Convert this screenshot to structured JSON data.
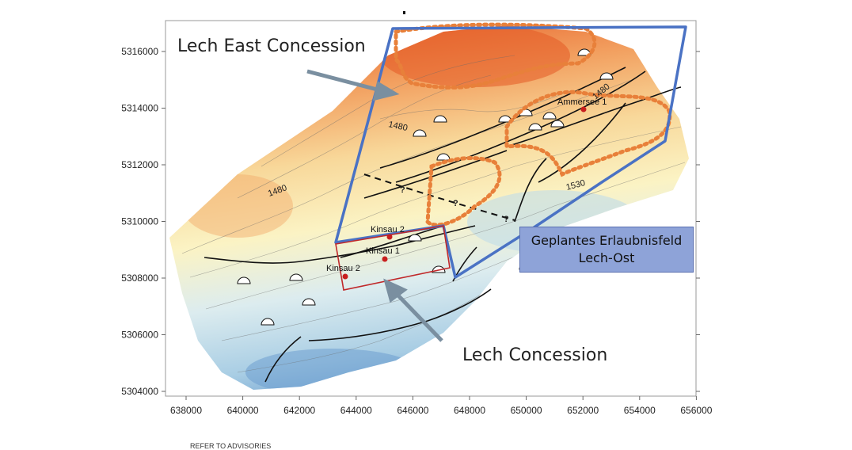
{
  "map": {
    "x_ticks": [
      "638000",
      "640000",
      "642000",
      "644000",
      "646000",
      "648000",
      "650000",
      "652000",
      "654000",
      "656000"
    ],
    "y_ticks": [
      "5316000",
      "5314000",
      "5312000",
      "5310000",
      "5308000",
      "5306000",
      "5304000"
    ],
    "contour_labels": [
      "1480",
      "1480",
      "1480",
      "1530"
    ],
    "fault_uncertain_marks": [
      "?",
      "?",
      "?"
    ],
    "wells": [
      "Kinsau 2",
      "Kinsau 1",
      "Kinsau 2",
      "Ammersee 1"
    ]
  },
  "callouts": {
    "lech_east": "Lech East Concession",
    "lech": "Lech Concession",
    "erlaubnis_line1": "Geplantes Erlaubnisfeld",
    "erlaubnis_line2": "Lech-Ost"
  },
  "footer": {
    "text": "REFER TO ADVISORIES"
  },
  "colors": {
    "concession_outline": "#4a72c4",
    "lech_concession_outline": "#c0282a",
    "dotted_zone": "#e8803a",
    "arrow": "#7a8fa0",
    "well": "#c81e1e"
  }
}
